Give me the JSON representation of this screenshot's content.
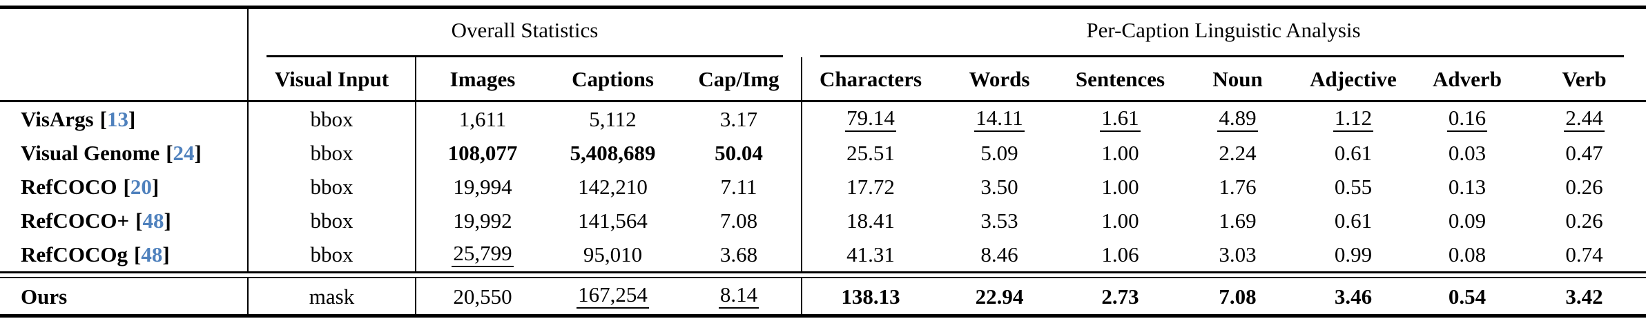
{
  "table": {
    "group_headers": [
      {
        "label": "Overall Statistics"
      },
      {
        "label": "Per-Caption Linguistic Analysis"
      }
    ],
    "columns": [
      "Visual Input",
      "Images",
      "Captions",
      "Cap/Img",
      "Characters",
      "Words",
      "Sentences",
      "Noun",
      "Adjective",
      "Adverb",
      "Verb"
    ],
    "citation": {
      "bracket_open": "[",
      "bracket_close": "]",
      "color": "#4f81bd"
    },
    "colors": {
      "text": "#000000",
      "background": "#ffffff",
      "rule": "#000000"
    },
    "rows": [
      {
        "label": "VisArgs",
        "cite": "13",
        "values": [
          {
            "text": "bbox"
          },
          {
            "text": "1,611"
          },
          {
            "text": "5,112"
          },
          {
            "text": "3.17"
          },
          {
            "text": "79.14",
            "underline": true
          },
          {
            "text": "14.11",
            "underline": true
          },
          {
            "text": "1.61",
            "underline": true
          },
          {
            "text": "4.89",
            "underline": true
          },
          {
            "text": "1.12",
            "underline": true
          },
          {
            "text": "0.16",
            "underline": true
          },
          {
            "text": "2.44",
            "underline": true
          }
        ]
      },
      {
        "label": "Visual Genome",
        "cite": "24",
        "values": [
          {
            "text": "bbox"
          },
          {
            "text": "108,077",
            "bold": true
          },
          {
            "text": "5,408,689",
            "bold": true
          },
          {
            "text": "50.04",
            "bold": true
          },
          {
            "text": "25.51"
          },
          {
            "text": "5.09"
          },
          {
            "text": "1.00"
          },
          {
            "text": "2.24"
          },
          {
            "text": "0.61"
          },
          {
            "text": "0.03"
          },
          {
            "text": "0.47"
          }
        ]
      },
      {
        "label": "RefCOCO",
        "cite": "20",
        "values": [
          {
            "text": "bbox"
          },
          {
            "text": "19,994"
          },
          {
            "text": "142,210"
          },
          {
            "text": "7.11"
          },
          {
            "text": "17.72"
          },
          {
            "text": "3.50"
          },
          {
            "text": "1.00"
          },
          {
            "text": "1.76"
          },
          {
            "text": "0.55"
          },
          {
            "text": "0.13"
          },
          {
            "text": "0.26"
          }
        ]
      },
      {
        "label": "RefCOCO+",
        "cite": "48",
        "values": [
          {
            "text": "bbox"
          },
          {
            "text": "19,992"
          },
          {
            "text": "141,564"
          },
          {
            "text": "7.08"
          },
          {
            "text": "18.41"
          },
          {
            "text": "3.53"
          },
          {
            "text": "1.00"
          },
          {
            "text": "1.69"
          },
          {
            "text": "0.61"
          },
          {
            "text": "0.09"
          },
          {
            "text": "0.26"
          }
        ]
      },
      {
        "label": "RefCOCOg",
        "cite": "48",
        "values": [
          {
            "text": "bbox"
          },
          {
            "text": "25,799",
            "underline": true
          },
          {
            "text": "95,010"
          },
          {
            "text": "3.68"
          },
          {
            "text": "41.31"
          },
          {
            "text": "8.46"
          },
          {
            "text": "1.06"
          },
          {
            "text": "3.03"
          },
          {
            "text": "0.99"
          },
          {
            "text": "0.08"
          },
          {
            "text": "0.74"
          }
        ]
      }
    ],
    "ours": {
      "label": "Ours",
      "cite": "",
      "values": [
        {
          "text": "mask"
        },
        {
          "text": "20,550"
        },
        {
          "text": "167,254",
          "underline": true
        },
        {
          "text": "8.14",
          "underline": true
        },
        {
          "text": "138.13",
          "bold": true
        },
        {
          "text": "22.94",
          "bold": true
        },
        {
          "text": "2.73",
          "bold": true
        },
        {
          "text": "7.08",
          "bold": true
        },
        {
          "text": "3.46",
          "bold": true
        },
        {
          "text": "0.54",
          "bold": true
        },
        {
          "text": "3.42",
          "bold": true
        }
      ]
    }
  }
}
